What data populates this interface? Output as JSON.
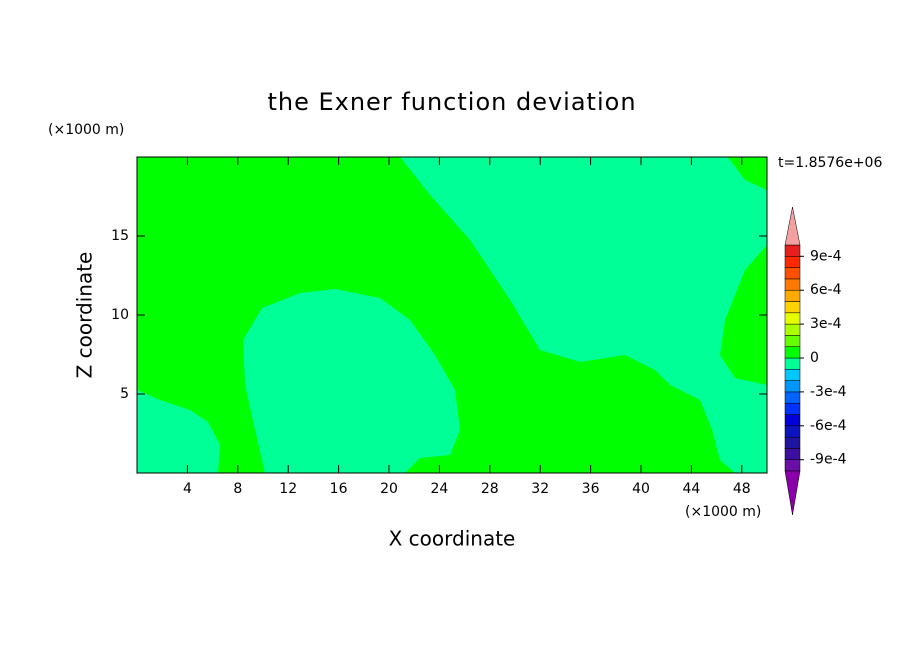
{
  "chart_data": {
    "type": "contour",
    "title": "the Exner function deviation",
    "xlabel": "X coordinate",
    "ylabel": "Z coordinate",
    "x_unit": "(×1000 m)",
    "y_unit": "(×1000 m)",
    "annotation": "t=1.8576e+06",
    "xlim": [
      0,
      50
    ],
    "ylim": [
      0,
      20
    ],
    "xticks": [
      4,
      8,
      12,
      16,
      20,
      24,
      28,
      32,
      36,
      40,
      44,
      48
    ],
    "yticks": [
      5,
      10,
      15
    ],
    "levels": [
      -0.001,
      -0.0009,
      -0.0008,
      -0.0007,
      -0.0006,
      -0.0005,
      -0.0004,
      -0.0003,
      -0.0002,
      -0.0001,
      0,
      0.0001,
      0.0002,
      0.0003,
      0.0004,
      0.0005,
      0.0006,
      0.0007,
      0.0008,
      0.0009,
      0.001
    ],
    "colors": [
      "#6a0fa8",
      "#3c0fa0",
      "#1e14a0",
      "#0a14c0",
      "#0000dc",
      "#0032ff",
      "#0064ff",
      "#0096ff",
      "#00c8ff",
      "#00ff96",
      "#00ff00",
      "#64ff00",
      "#aaff00",
      "#e6ff00",
      "#ffd200",
      "#ffaa00",
      "#ff7800",
      "#ff5000",
      "#ff2800",
      "#e61e1e"
    ],
    "under_color": "#8a00a8",
    "over_color": "#f4a0a0",
    "colorbar_ticks": [
      {
        "value": 0.0009,
        "label": "9e-4"
      },
      {
        "value": 0.0006,
        "label": "6e-4"
      },
      {
        "value": 0.0003,
        "label": "3e-4"
      },
      0,
      {
        "value": -0.0003,
        "label": "-3e-4"
      },
      {
        "value": -0.0006,
        "label": "-6e-4"
      },
      {
        "value": -0.0009,
        "label": "-9e-4"
      }
    ]
  }
}
